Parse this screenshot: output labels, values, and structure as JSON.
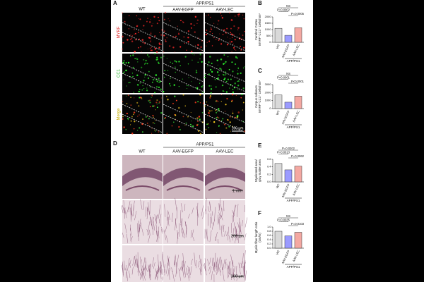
{
  "figure": {
    "a": {
      "letter": "A",
      "columns": [
        "WT",
        "AAV-EGFP",
        "AAV-LEC"
      ],
      "group": "APP/PS1",
      "rows": [
        "MYRF",
        "CC1",
        "Merge"
      ],
      "scale": "100 μm"
    },
    "d": {
      "letter": "D",
      "columns": [
        "WT",
        "AAV-EGFP",
        "AAV-LEC"
      ],
      "group": "APP/PS1",
      "scales": [
        "1 mm",
        "200 μm",
        "200 μm"
      ]
    }
  },
  "chart_data": [
    {
      "type": "bar",
      "panel": "B",
      "ylabel": [
        "Cerebral Cortex",
        "MYRF⁺CC1⁺ Cells/mm²"
      ],
      "categories": [
        "WT",
        "AAV-EGFP",
        "AAV-LEC"
      ],
      "group_label": "APP/PS1",
      "values": [
        1100,
        550,
        1150
      ],
      "colors": [
        "#d9d9d9",
        "#9b9bff",
        "#f4a8a2"
      ],
      "ylim": [
        0,
        2000
      ],
      "yticks": [
        0,
        500,
        1000,
        1500,
        2000
      ],
      "annotations": [
        "NS",
        "P=0.0002",
        "P=0.0005"
      ]
    },
    {
      "type": "bar",
      "panel": "C",
      "ylabel": [
        "Corpus callosum",
        "MYRF⁺CC1⁺ Cells/mm²"
      ],
      "categories": [
        "WT",
        "AAV-EGFP",
        "AAV-LEC"
      ],
      "group_label": "APP/PS1",
      "values": [
        1700,
        800,
        1550
      ],
      "colors": [
        "#d9d9d9",
        "#9b9bff",
        "#f4a8a2"
      ],
      "ylim": [
        0,
        3000
      ],
      "yticks": [
        0,
        1000,
        2000,
        3000
      ],
      "annotations": [
        "NS",
        "P<0.0001",
        "P<0.0001"
      ]
    },
    {
      "type": "bar",
      "panel": "E",
      "ylabel": [
        "Myelinated area/",
        "gray matter area"
      ],
      "categories": [
        "WT",
        "AAV-EGFP",
        "AAV-LEC"
      ],
      "group_label": "APP/PS1",
      "values": [
        0.49,
        0.32,
        0.42
      ],
      "colors": [
        "#d9d9d9",
        "#9b9bff",
        "#f4a8a2"
      ],
      "ylim": [
        0,
        0.6
      ],
      "yticks": [
        {
          "value": 0,
          "label": "0.0"
        },
        0.2,
        0.4,
        0.6
      ],
      "annotations": [
        "P=0.0202",
        "P=0.0013",
        "P=0.0062"
      ]
    },
    {
      "type": "bar",
      "panel": "F",
      "ylabel": [
        "Myelin fiber length ratio",
        "(cm/m)"
      ],
      "categories": [
        "WT",
        "AAV-EGFP",
        "AAV-LEC"
      ],
      "group_label": "APP/PS1",
      "values": [
        0.8,
        0.58,
        0.75
      ],
      "colors": [
        "#d9d9d9",
        "#9b9bff",
        "#f4a8a2"
      ],
      "ylim": [
        0,
        1
      ],
      "yticks": [
        {
          "value": 0,
          "label": "0.0"
        },
        0.2,
        0.4,
        0.6,
        0.8,
        {
          "value": 1,
          "label": "1.0"
        }
      ],
      "annotations": [
        "NS",
        "P=0.0035",
        "P=0.0103"
      ]
    }
  ]
}
